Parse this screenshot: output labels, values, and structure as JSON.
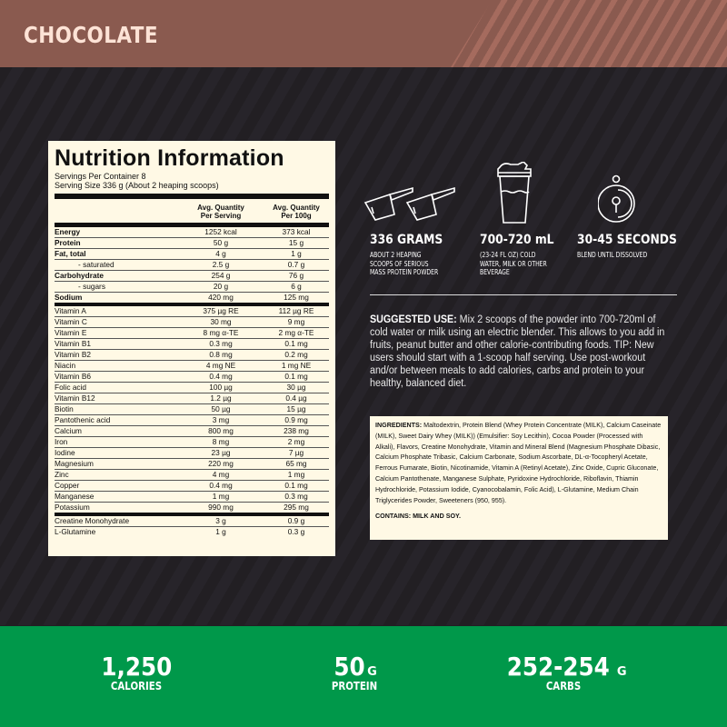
{
  "header": {
    "flavor": "CHOCOLATE",
    "color": "#8a5a4f"
  },
  "nutrition": {
    "title": "Nutrition Information",
    "servings_per_container": "Servings Per Container 8",
    "serving_size": "Serving Size 336 g (About 2 heaping scoops)",
    "columns": [
      "",
      "Avg. Quantity Per Serving",
      "Avg. Quantity Per 100g"
    ],
    "col2_line1": "Avg. Quantity",
    "col2_line2": "Per Serving",
    "col3_line1": "Avg. Quantity",
    "col3_line2": "Per 100g",
    "rows": [
      {
        "name": "Energy",
        "per_serving": "1252 kcal",
        "per_100g": "373 kcal"
      },
      {
        "name": "Protein",
        "per_serving": "50 g",
        "per_100g": "15 g"
      },
      {
        "name": "Fat, total",
        "per_serving": "4 g",
        "per_100g": "1 g"
      },
      {
        "name": "- saturated",
        "per_serving": "2.5 g",
        "per_100g": "0.7 g"
      },
      {
        "name": "Carbohydrate",
        "per_serving": "254 g",
        "per_100g": "76 g"
      },
      {
        "name": "- sugars",
        "per_serving": "20 g",
        "per_100g": "6 g"
      },
      {
        "name": "Sodium",
        "per_serving": "420 mg",
        "per_100g": "125 mg"
      },
      {
        "name": "Vitamin A",
        "per_serving": "375 µg RE",
        "per_100g": "112 µg RE"
      },
      {
        "name": "Vitamin C",
        "per_serving": "30 mg",
        "per_100g": "9 mg"
      },
      {
        "name": "Vitamin E",
        "per_serving": "8 mg α-TE",
        "per_100g": "2 mg α-TE"
      },
      {
        "name": "Vitamin B1",
        "per_serving": "0.3 mg",
        "per_100g": "0.1 mg"
      },
      {
        "name": "Vitamin B2",
        "per_serving": "0.8 mg",
        "per_100g": "0.2 mg"
      },
      {
        "name": "Niacin",
        "per_serving": "4 mg NE",
        "per_100g": "1 mg NE"
      },
      {
        "name": "Vitamin B6",
        "per_serving": "0.4 mg",
        "per_100g": "0.1 mg"
      },
      {
        "name": "Folic acid",
        "per_serving": "100 µg",
        "per_100g": "30 µg"
      },
      {
        "name": "Vitamin B12",
        "per_serving": "1.2 µg",
        "per_100g": "0.4 µg"
      },
      {
        "name": "Biotin",
        "per_serving": "50 µg",
        "per_100g": "15 µg"
      },
      {
        "name": "Pantothenic acid",
        "per_serving": "3 mg",
        "per_100g": "0.9 mg"
      },
      {
        "name": "Calcium",
        "per_serving": "800 mg",
        "per_100g": "238 mg"
      },
      {
        "name": "Iron",
        "per_serving": "8 mg",
        "per_100g": "2 mg"
      },
      {
        "name": "Iodine",
        "per_serving": "23 µg",
        "per_100g": "7 µg"
      },
      {
        "name": "Magnesium",
        "per_serving": "220 mg",
        "per_100g": "65 mg"
      },
      {
        "name": "Zinc",
        "per_serving": "4 mg",
        "per_100g": "1 mg"
      },
      {
        "name": "Copper",
        "per_serving": "0.4 mg",
        "per_100g": "0.1 mg"
      },
      {
        "name": "Manganese",
        "per_serving": "1 mg",
        "per_100g": "0.3 mg"
      },
      {
        "name": "Potassium",
        "per_serving": "990 mg",
        "per_100g": "295 mg"
      },
      {
        "name": "Creatine Monohydrate",
        "per_serving": "3 g",
        "per_100g": "0.9 g"
      },
      {
        "name": "L-Glutamine",
        "per_serving": "1 g",
        "per_100g": "0.3 g"
      }
    ]
  },
  "usage_stats": [
    {
      "icon": "scoops-icon",
      "title": "336 GRAMS",
      "desc_lines": [
        "ABOUT 2 HEAPING",
        "SCOOPS OF SERIOUS",
        "MASS PROTEIN POWDER"
      ]
    },
    {
      "icon": "shaker-bottle-icon",
      "title": "700-720 mL",
      "desc_lines": [
        "(23-24 FL OZ) COLD",
        "WATER, MILK OR OTHER",
        "BEVERAGE"
      ]
    },
    {
      "icon": "stopwatch-icon",
      "title": "30-45 SECONDS",
      "desc_lines": [
        "BLEND UNTIL DISSOLVED"
      ]
    }
  ],
  "suggested_use": {
    "label": "SUGGESTED USE:",
    "text": " Mix 2 scoops of the powder into 700-720ml of cold water or milk using an electric blender. This allows to you add in fruits, peanut butter and other calorie-contributing foods. TIP: New users should start with a 1-scoop half serving. Use post-workout and/or between meals to add calories, carbs and protein to your healthy, balanced diet."
  },
  "ingredients": {
    "label": "INGREDIENTS:",
    "text": " Maltodextrin, Protein Blend (Whey Protein Concentrate (MILK), Calcium Caseinate (MILK), Sweet Dairy Whey (MILK)) (Emulsifier: Soy Lecithin), Cocoa Powder (Processed with Alkali), Flavors, Creatine Monohydrate, Vitamin and Mineral Blend (Magnesium Phosphate Dibasic, Calcium Phosphate Tribasic, Calcium Carbonate, Sodium Ascorbate, DL-α-Tocopheryl Acetate, Ferrous Fumarate, Biotin, Nicotinamide, Vitamin A (Retinyl Acetate), Zinc Oxide, Cupric Gluconate, Calcium Pantothenate, Manganese Sulphate, Pyridoxine Hydrochloride, Riboflavin, Thiamin Hydrochloride, Potassium Iodide, Cyanocobalamin, Folic Acid), L-Glutamine, Medium Chain Triglycerides Powder, Sweeteners (950, 955).",
    "contains": "CONTAINS: MILK AND SOY."
  },
  "footer": {
    "color": "#00984a",
    "stats": [
      {
        "value": "1,250",
        "unit": "",
        "label": "CALORIES"
      },
      {
        "value": "50",
        "unit": "G",
        "label": "PROTEIN"
      },
      {
        "value": "252-254",
        "unit": "G",
        "label": "CARBS"
      }
    ]
  }
}
